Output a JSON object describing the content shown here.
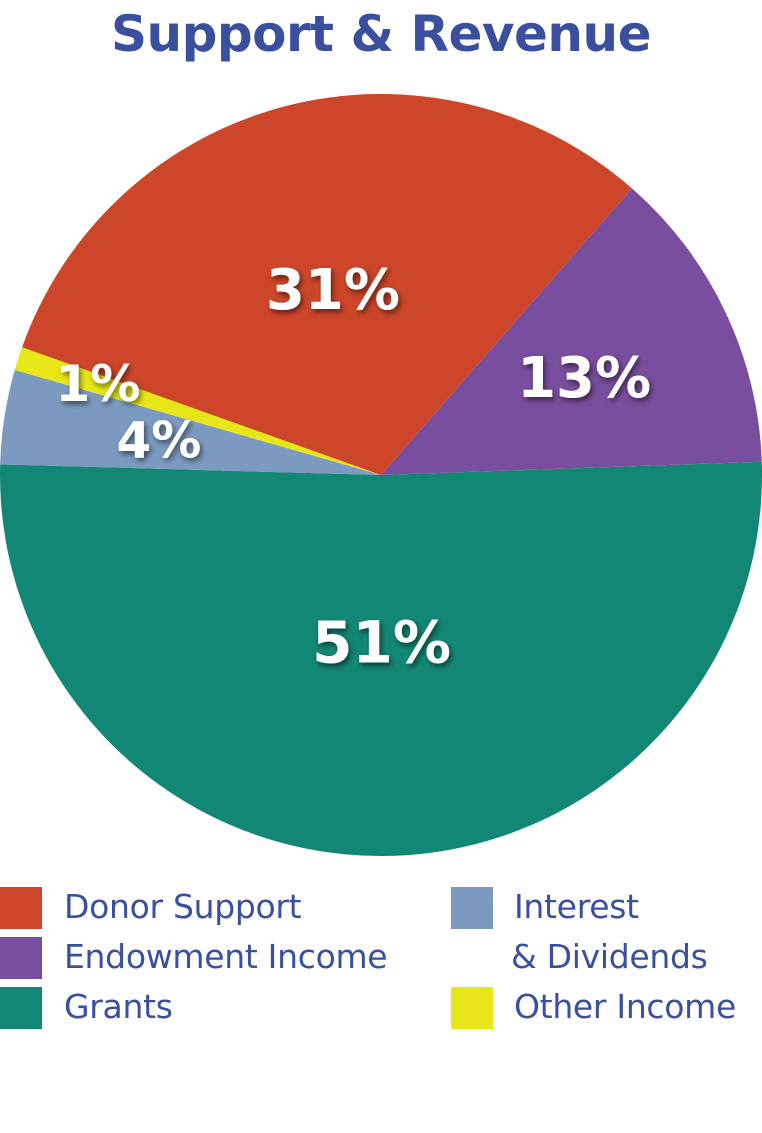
{
  "chart_data": {
    "type": "pie",
    "title": "Support & Revenue",
    "slices": [
      {
        "name": "Grants",
        "value": 51,
        "label": "51%",
        "color": "#138775"
      },
      {
        "name": "Interest & Dividends",
        "value": 4,
        "label": "4%",
        "color": "#7c9ac0"
      },
      {
        "name": "Other Income",
        "value": 1,
        "label": "1%",
        "color": "#e6e619"
      },
      {
        "name": "Donor Support",
        "value": 31,
        "label": "31%",
        "color": "#cd4629"
      },
      {
        "name": "Endowment Income",
        "value": 13,
        "label": "13%",
        "color": "#7a4e9e"
      }
    ],
    "legend": {
      "placement": "bottom",
      "items": [
        {
          "label": "Donor Support",
          "color": "#cd4629"
        },
        {
          "label": "Endowment Income",
          "color": "#7a4e9e"
        },
        {
          "label": "Grants",
          "color": "#138775"
        },
        {
          "label_line1": "Interest",
          "label_line2": "& Dividends",
          "color": "#7c9ac0"
        },
        {
          "label": "Other Income",
          "color": "#e6e619"
        }
      ]
    }
  },
  "colors": {
    "title": "#3a4f9e",
    "legend_text": "#3a4f9e",
    "slice_label": "#ffffff"
  }
}
